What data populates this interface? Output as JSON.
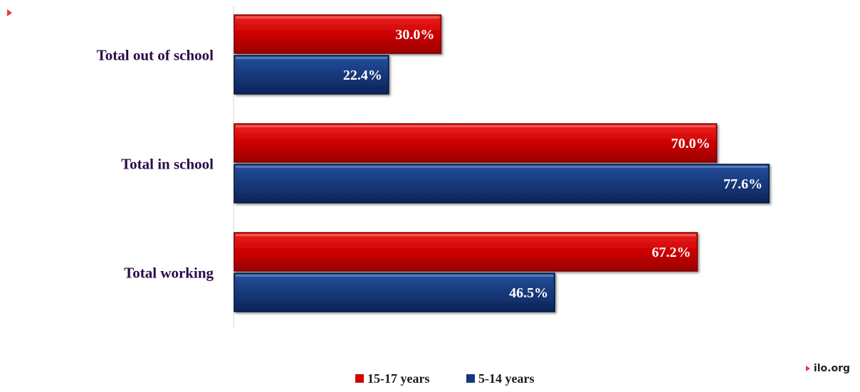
{
  "chart_data": {
    "type": "bar",
    "orientation": "horizontal",
    "categories": [
      "Total out of school",
      "Total in school",
      "Total working"
    ],
    "series": [
      {
        "name": "15-17 years",
        "values": [
          30.0,
          70.0,
          67.2
        ]
      },
      {
        "name": "5-14 years",
        "values": [
          22.4,
          77.6,
          46.5
        ]
      }
    ],
    "value_labels": [
      [
        "30.0%",
        "70.0%",
        "67.2%"
      ],
      [
        "22.4%",
        "77.6%",
        "46.5%"
      ]
    ],
    "title": "",
    "xlabel": "",
    "ylabel": "",
    "xlim": [
      0,
      100
    ],
    "grid": false,
    "legend": "bottom-center",
    "colors": {
      "15-17 years": "#cc0000",
      "5-14 years": "#17397a",
      "category_text": "#2a0a4a"
    }
  },
  "footer": {
    "brand": "ilo.org"
  }
}
